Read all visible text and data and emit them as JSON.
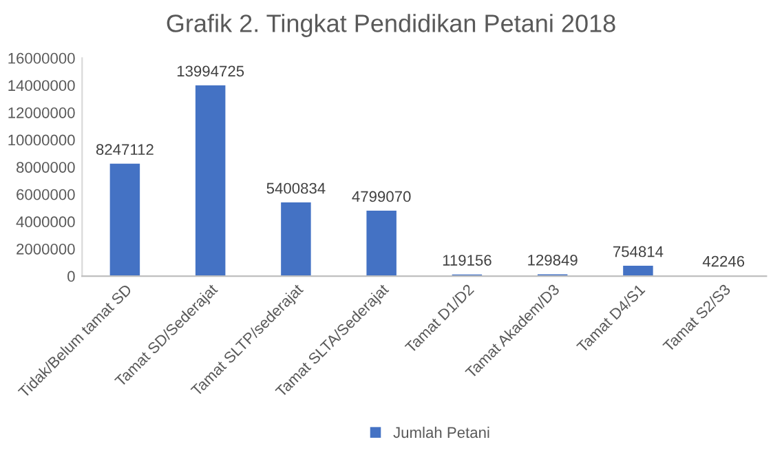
{
  "chart_data": {
    "type": "bar",
    "title": "Grafik 2. Tingkat Pendidikan Petani 2018",
    "categories": [
      "Tidak/Belum tamat SD",
      "Tamat SD/Sederajat",
      "Tamat SLTP/sederajat",
      "Tamat SLTA/Sederajat",
      "Tamat D1/D2",
      "Tamat Akadem/D3",
      "Tamat D4/S1",
      "Tamat S2/S3"
    ],
    "series": [
      {
        "name": "Jumlah Petani",
        "color": "#4472c4",
        "values": [
          8247112,
          13994725,
          5400834,
          4799070,
          119156,
          129849,
          754814,
          42246
        ]
      }
    ],
    "ylim": [
      0,
      16000000
    ],
    "yticks": [
      0,
      2000000,
      4000000,
      6000000,
      8000000,
      10000000,
      12000000,
      14000000,
      16000000
    ],
    "data_labels": true,
    "legend": "bottom",
    "grid": false
  }
}
